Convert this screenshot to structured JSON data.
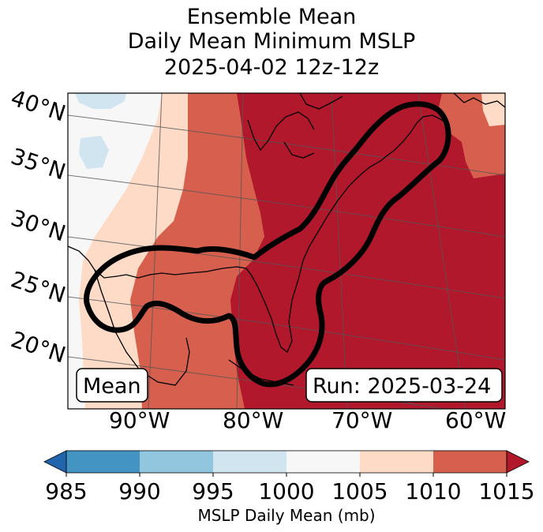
{
  "title": {
    "line1": "Ensemble Mean",
    "line2": "Daily Mean Minimum MSLP",
    "line3": "2025-04-02 12z-12z"
  },
  "map": {
    "latitude_labels": [
      "40°N",
      "35°N",
      "30°N",
      "25°N",
      "20°N"
    ],
    "longitude_labels": [
      "90°W",
      "80°W",
      "70°W",
      "60°W"
    ],
    "left_box_label": "Mean",
    "right_box_label": "Run: 2025-03-24",
    "contour_color": "#000000"
  },
  "colorbar": {
    "label": "MSLP Daily Mean (mb)",
    "ticks": [
      "985",
      "990",
      "995",
      "1000",
      "1005",
      "1010",
      "1015"
    ],
    "colors": {
      "under": "#2166ac",
      "c985_990": "#4393c3",
      "c990_995": "#92c5de",
      "c995_1000": "#d1e5f0",
      "c1000_1005": "#f7f7f7",
      "c1005_1010": "#fddbc7",
      "c1010_1015": "#d6604d",
      "over": "#b2182b"
    }
  }
}
